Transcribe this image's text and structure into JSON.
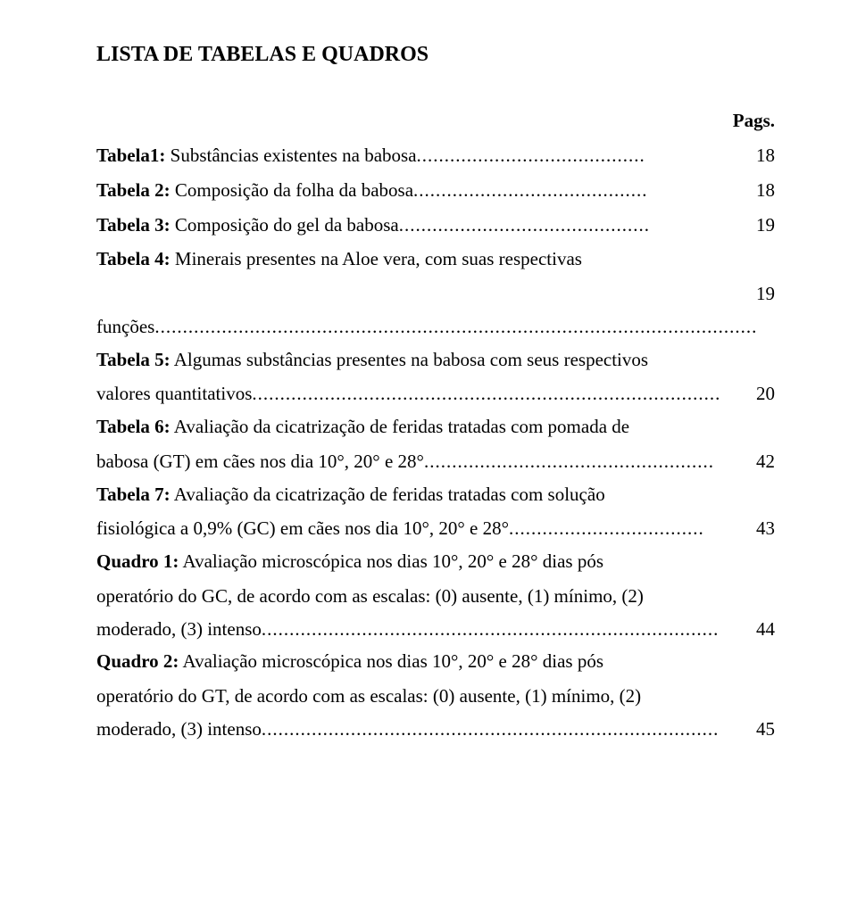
{
  "title": "LISTA DE TABELAS E QUADROS",
  "pags_label": "Pags.",
  "entries": [
    {
      "label": "Tabela1:",
      "desc": " Substâncias existentes na babosa",
      "page": "18",
      "dots": "........................................."
    },
    {
      "label": "Tabela 2:",
      "desc": " Composição da folha da babosa",
      "page": "18",
      "dots": ".........................................."
    },
    {
      "label": "Tabela 3:",
      "desc": " Composição do gel da babosa",
      "page": "19",
      "dots": "............................................."
    },
    {
      "label": "Tabela 4:",
      "desc": " Minerais presentes na Aloe vera, com suas respectivas",
      "cont": "funções",
      "page": "19",
      "dots": "............................................................................................................"
    },
    {
      "label": "Tabela 5:",
      "desc": " Algumas substâncias presentes na babosa com seus respectivos",
      "cont": "valores quantitativos",
      "page": "20",
      "dots": "...................................................................................."
    },
    {
      "label": "Tabela 6:",
      "desc": " Avaliação da cicatrização de feridas tratadas com pomada de",
      "cont": "babosa (GT) em cães nos dia 10°, 20° e 28°",
      "page": "42",
      "dots": "...................................................."
    },
    {
      "label": "Tabela 7:",
      "desc": " Avaliação da cicatrização de feridas tratadas com solução",
      "cont": "fisiológica a 0,9% (GC) em cães nos dia 10°, 20° e 28°",
      "page": "43",
      "dots": "..................................."
    },
    {
      "label": "Quadro 1:",
      "desc": " Avaliação microscópica nos dias 10°, 20° e 28° dias pós",
      "cont": "operatório do GC, de acordo com as escalas: (0) ausente, (1) mínimo, (2)",
      "cont2": "moderado, (3) intenso",
      "page": "44",
      "dots": ".................................................................................."
    },
    {
      "label": "Quadro 2:",
      "desc": " Avaliação microscópica nos dias 10°, 20° e 28° dias pós",
      "cont": "operatório do GT, de acordo com as escalas: (0) ausente, (1) mínimo, (2)",
      "cont2": "moderado, (3) intenso",
      "page": "45",
      "dots": ".................................................................................."
    }
  ]
}
